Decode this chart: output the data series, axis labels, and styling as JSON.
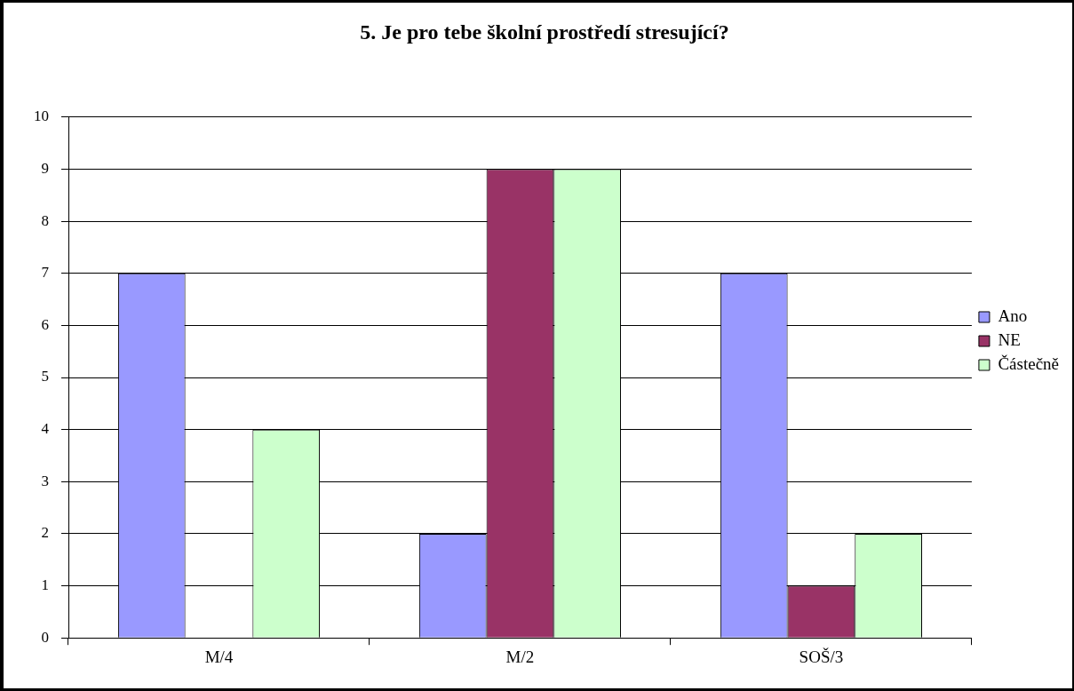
{
  "chart_data": {
    "type": "bar",
    "title": "5. Je pro tebe školní prostředí stresující?",
    "categories": [
      "M/4",
      "M/2",
      "SOŠ/3"
    ],
    "series": [
      {
        "name": "Ano",
        "color": "#9999ff",
        "values": [
          7,
          2,
          7
        ]
      },
      {
        "name": "NE",
        "color": "#993366",
        "values": [
          0,
          9,
          1
        ]
      },
      {
        "name": "Částečně",
        "color": "#ccffcc",
        "values": [
          4,
          9,
          2
        ]
      }
    ],
    "ylim": [
      0,
      10
    ],
    "yticks": [
      0,
      1,
      2,
      3,
      4,
      5,
      6,
      7,
      8,
      9,
      10
    ],
    "grid": "y",
    "legend": "right"
  }
}
